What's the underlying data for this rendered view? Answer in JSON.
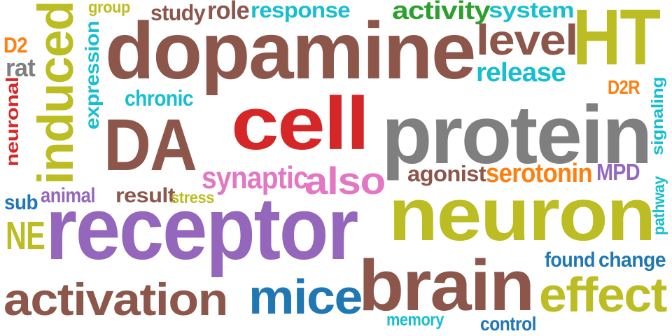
{
  "cloud": {
    "background": "#ffffff",
    "palette": {
      "brown": "#8c564b",
      "red": "#d62728",
      "gray": "#7f7f7f",
      "olive": "#bcbd22",
      "purple": "#9467bd",
      "blue": "#1f77b4",
      "cyan": "#17becf",
      "green": "#2ca02c",
      "orange": "#ff7f0e",
      "pink": "#e377c2"
    },
    "words": [
      {
        "text": "dopamine",
        "color": "brown"
      },
      {
        "text": "receptor",
        "color": "purple"
      },
      {
        "text": "neuron",
        "color": "olive"
      },
      {
        "text": "protein",
        "color": "gray"
      },
      {
        "text": "cell",
        "color": "red"
      },
      {
        "text": "DA",
        "color": "brown"
      },
      {
        "text": "brain",
        "color": "brown"
      },
      {
        "text": "HT",
        "color": "olive"
      },
      {
        "text": "activation",
        "color": "brown"
      },
      {
        "text": "induced",
        "color": "olive"
      },
      {
        "text": "mice",
        "color": "blue"
      },
      {
        "text": "effect",
        "color": "olive"
      },
      {
        "text": "level",
        "color": "brown"
      },
      {
        "text": "also",
        "color": "pink"
      },
      {
        "text": "synaptic",
        "color": "pink"
      },
      {
        "text": "NE",
        "color": "olive"
      },
      {
        "text": "release",
        "color": "cyan"
      },
      {
        "text": "response",
        "color": "cyan"
      },
      {
        "text": "activity",
        "color": "green"
      },
      {
        "text": "system",
        "color": "cyan"
      },
      {
        "text": "role",
        "color": "brown"
      },
      {
        "text": "study",
        "color": "brown"
      },
      {
        "text": "agonist",
        "color": "brown"
      },
      {
        "text": "serotonin",
        "color": "orange"
      },
      {
        "text": "MPD",
        "color": "purple"
      },
      {
        "text": "change",
        "color": "blue"
      },
      {
        "text": "found",
        "color": "blue"
      },
      {
        "text": "result",
        "color": "brown"
      },
      {
        "text": "chronic",
        "color": "cyan"
      },
      {
        "text": "expression",
        "color": "cyan"
      },
      {
        "text": "neuronal",
        "color": "red"
      },
      {
        "text": "signaling",
        "color": "cyan"
      },
      {
        "text": "pathway",
        "color": "cyan"
      },
      {
        "text": "rat",
        "color": "gray"
      },
      {
        "text": "D2",
        "color": "orange"
      },
      {
        "text": "D2R",
        "color": "orange"
      },
      {
        "text": "animal",
        "color": "purple"
      },
      {
        "text": "sub",
        "color": "blue"
      },
      {
        "text": "stress",
        "color": "olive"
      },
      {
        "text": "group",
        "color": "olive"
      },
      {
        "text": "memory",
        "color": "cyan"
      },
      {
        "text": "control",
        "color": "blue"
      }
    ]
  }
}
